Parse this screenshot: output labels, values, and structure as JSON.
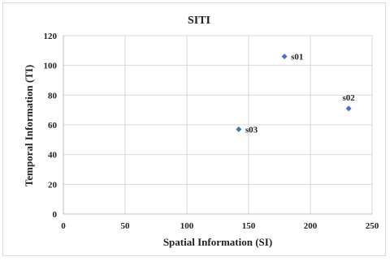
{
  "chart_data": {
    "type": "scatter",
    "title": "SITI",
    "xlabel": "Spatial Information (SI)",
    "ylabel": "Temporal Information (TI)",
    "xlim": [
      0,
      250
    ],
    "ylim": [
      0,
      120
    ],
    "x_ticks": [
      "0",
      "50",
      "100",
      "150",
      "200",
      "250"
    ],
    "y_ticks": [
      "0",
      "20",
      "40",
      "60",
      "80",
      "100",
      "120"
    ],
    "grid": true,
    "marker": "diamond",
    "marker_color": "#4472c4",
    "points": [
      {
        "label": "s01",
        "x": 179,
        "y": 106
      },
      {
        "label": "s02",
        "x": 231,
        "y": 71
      },
      {
        "label": "s03",
        "x": 142,
        "y": 57
      }
    ]
  }
}
